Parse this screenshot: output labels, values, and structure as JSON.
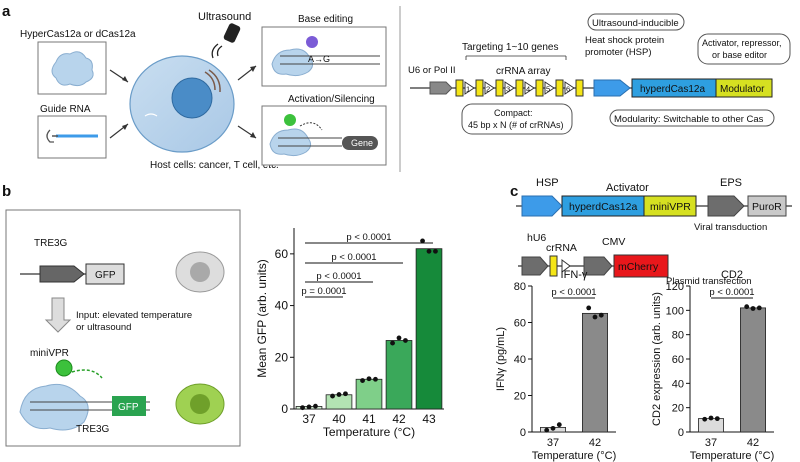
{
  "panel_a": {
    "letter": "a",
    "hypercas_label": "HyperCas12a or dCas12a",
    "guide_label": "Guide RNA",
    "ultrasound_label": "Ultrasound",
    "host_cells_prefix": "Host cells: cancer, T cell, ",
    "host_cells_etc": "etc.",
    "base_editing_title": "Base editing",
    "base_a": "A",
    "base_g": "G",
    "activation_title": "Activation/Silencing",
    "gene_label": "Gene",
    "targeting_label": "Targeting 1~10 genes",
    "u6_label": "U6 or Pol II",
    "crrna_array_label": "crRNA array",
    "crrna_numbers": [
      "1",
      "2",
      "3",
      "4",
      "5",
      "6"
    ],
    "compact_line1": "Compact:",
    "compact_line2": "45 bp x N (# of crRNAs)",
    "ultrasound_inducible": "Ultrasound-inducible",
    "hsp_line1": "Heat shock protein",
    "hsp_line2": "promoter (HSP)",
    "hyperdcas_label": "hyperdCas12a",
    "modulator_label": "Modulator",
    "activator_line1": "Activator, repressor,",
    "activator_line2": "or base editor",
    "modularity_label": "Modularity: Switchable to other Cas"
  },
  "panel_b": {
    "letter": "b",
    "tre3g_top": "TRE3G",
    "gfp_top": "GFP",
    "input_line1": "Input: elevated temperature",
    "input_line2": "or ultrasound",
    "minivpr_label": "miniVPR",
    "tre3g_bottom": "TRE3G",
    "gfp_bottom": "GFP"
  },
  "panel_c": {
    "letter": "c",
    "hsp_label": "HSP",
    "activator_label": "Activator",
    "eps_label": "EPS",
    "hyperdcas_label": "hyperdCas12a",
    "minivpr_label": "miniVPR",
    "puror_label": "PuroR",
    "viral_label": "Viral transduction",
    "hu6_label": "hU6",
    "crrna_label": "crRNA",
    "cmv_label": "CMV",
    "mcherry_label": "mCherry",
    "plasmid_label": "Plasmid transfection"
  },
  "colors": {
    "blue": "#3d9be9",
    "yellow_green": "#d6e021",
    "yellow": "#f5e617",
    "red": "#e8171b",
    "grey_arrow": "#6d6d6d",
    "bar_grey": "#8a8a8a",
    "green_1": "#d6f0d6",
    "green_2": "#b3e3b3",
    "green_3": "#7fcf89",
    "green_4": "#3aa85a",
    "green_5": "#168a3a"
  },
  "chart_data": [
    {
      "type": "bar",
      "categories": [
        "37",
        "40",
        "41",
        "42",
        "43"
      ],
      "values": [
        1,
        5.5,
        11.5,
        26.5,
        62
      ],
      "points": [
        [
          0.5,
          0.8,
          1.1
        ],
        [
          5,
          5.6,
          5.9
        ],
        [
          11,
          11.7,
          11.5
        ],
        [
          25.5,
          27.5,
          26.5
        ],
        [
          65,
          61,
          61
        ]
      ],
      "ylabel": "Mean GFP (arb. units)",
      "xlabel": "Temperature (°C)",
      "ylim": [
        0,
        70
      ],
      "yticks": [
        0,
        20,
        40,
        60
      ],
      "significance": [
        "p = 0.0001",
        "p < 0.0001",
        "p < 0.0001",
        "p < 0.0001"
      ]
    },
    {
      "type": "bar",
      "title": "IFN-γ",
      "categories": [
        "37",
        "42"
      ],
      "values": [
        2.5,
        65
      ],
      "points": [
        [
          1,
          2,
          4
        ],
        [
          68,
          63,
          64
        ]
      ],
      "ylabel": "IFNγ (pg/mL)",
      "xlabel": "Temperature (°C)",
      "ylim": [
        0,
        80
      ],
      "yticks": [
        0,
        20,
        40,
        60,
        80
      ],
      "significance": [
        "p < 0.0001"
      ]
    },
    {
      "type": "bar",
      "title": "CD2",
      "categories": [
        "37",
        "42"
      ],
      "values": [
        11,
        102
      ],
      "points": [
        [
          10.5,
          11.5,
          11
        ],
        [
          103,
          101.5,
          102
        ]
      ],
      "ylabel": "CD2 expression (arb. units)",
      "xlabel": "Temperature (°C)",
      "ylim": [
        0,
        120
      ],
      "yticks": [
        0,
        20,
        40,
        60,
        80,
        100,
        120
      ],
      "significance": [
        "p < 0.0001"
      ]
    }
  ]
}
